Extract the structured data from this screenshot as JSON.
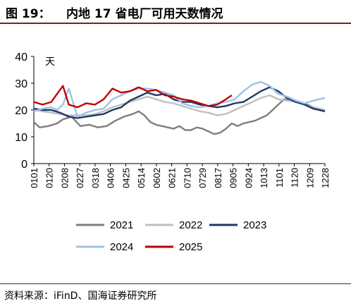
{
  "header": {
    "figure_label": "图 19：",
    "title": "内地 17 省电厂可用天数情况"
  },
  "source": "资料来源：iFinD、国海证券研究所",
  "chart_data": {
    "type": "line",
    "title": "内地 17 省电厂可用天数情况",
    "ylabel": "天",
    "ylim": [
      0,
      40
    ],
    "yticks": [
      0,
      10,
      20,
      30,
      40
    ],
    "x_tick_labels": [
      "0101",
      "0120",
      "0208",
      "0227",
      "0318",
      "0406",
      "0425",
      "0514",
      "0602",
      "0621",
      "0710",
      "0729",
      "0817",
      "0905",
      "0924",
      "1013",
      "1101",
      "1120",
      "1209",
      "1228"
    ],
    "x_positions": [
      0,
      0.0526,
      0.1053,
      0.1579,
      0.2105,
      0.2632,
      0.3158,
      0.3684,
      0.4211,
      0.4737,
      0.5263,
      0.5789,
      0.6316,
      0.6842,
      0.7368,
      0.7895,
      0.8421,
      0.8947,
      0.9474,
      1.0
    ],
    "grid": false,
    "legend_position": "bottom",
    "series": [
      {
        "name": "2021",
        "color": "#7f7f7f",
        "x": [
          0,
          0.02,
          0.05,
          0.08,
          0.1,
          0.13,
          0.16,
          0.19,
          0.22,
          0.25,
          0.28,
          0.31,
          0.34,
          0.36,
          0.38,
          0.4,
          0.42,
          0.44,
          0.46,
          0.48,
          0.5,
          0.52,
          0.54,
          0.56,
          0.58,
          0.6,
          0.62,
          0.64,
          0.66,
          0.68,
          0.7,
          0.72,
          0.74,
          0.76,
          0.78,
          0.8,
          0.82,
          0.84,
          0.86,
          0.88,
          0.9,
          0.92,
          0.94,
          0.96,
          0.98,
          1.0
        ],
        "values": [
          15.5,
          13.5,
          14,
          15,
          16.5,
          17.5,
          14,
          14.5,
          13.5,
          14,
          16,
          17.5,
          18.5,
          19.5,
          18,
          15.5,
          14.5,
          14,
          13.5,
          13,
          14,
          12.5,
          12.5,
          13.5,
          13,
          12,
          11,
          11.5,
          13,
          15,
          14,
          15,
          15.5,
          16,
          17,
          18,
          20,
          22,
          24,
          24,
          23,
          22.5,
          22,
          21,
          20.5,
          20
        ]
      },
      {
        "name": "2022",
        "color": "#bfbfbf",
        "x": [
          0,
          0.03,
          0.06,
          0.09,
          0.12,
          0.15,
          0.18,
          0.21,
          0.24,
          0.27,
          0.3,
          0.33,
          0.36,
          0.39,
          0.42,
          0.45,
          0.48,
          0.51,
          0.54,
          0.57,
          0.6,
          0.63,
          0.66,
          0.69,
          0.72,
          0.75,
          0.78,
          0.81,
          0.84,
          0.87,
          0.9,
          0.93,
          0.96,
          1.0
        ],
        "values": [
          20,
          19.5,
          19,
          18.5,
          18,
          18,
          18,
          18.5,
          19.5,
          21,
          22,
          23,
          24,
          25,
          24,
          23,
          22.5,
          21.5,
          20.5,
          19.5,
          19,
          18,
          18.5,
          20,
          21.5,
          23,
          24.5,
          25.5,
          24,
          23.5,
          23,
          22,
          21,
          20
        ]
      },
      {
        "name": "2023",
        "color": "#1f3864",
        "x": [
          0,
          0.03,
          0.06,
          0.09,
          0.12,
          0.15,
          0.18,
          0.21,
          0.24,
          0.27,
          0.3,
          0.33,
          0.36,
          0.39,
          0.42,
          0.45,
          0.48,
          0.51,
          0.54,
          0.57,
          0.6,
          0.63,
          0.66,
          0.69,
          0.72,
          0.75,
          0.78,
          0.81,
          0.84,
          0.87,
          0.9,
          0.93,
          0.96,
          1.0
        ],
        "values": [
          20.5,
          20,
          20,
          19,
          17.5,
          17,
          17.5,
          18,
          18.5,
          20,
          21,
          23.5,
          25,
          26.5,
          25.5,
          26,
          24,
          23,
          23,
          22,
          21.5,
          21,
          21.5,
          22.5,
          23,
          25,
          27,
          28.5,
          27,
          24.5,
          23,
          22,
          20.5,
          19.5
        ]
      },
      {
        "name": "2024",
        "color": "#9dc3e6",
        "x": [
          0,
          0.03,
          0.06,
          0.08,
          0.1,
          0.12,
          0.15,
          0.18,
          0.21,
          0.24,
          0.27,
          0.3,
          0.33,
          0.36,
          0.39,
          0.42,
          0.45,
          0.48,
          0.51,
          0.54,
          0.57,
          0.6,
          0.63,
          0.66,
          0.69,
          0.72,
          0.75,
          0.78,
          0.81,
          0.84,
          0.87,
          0.9,
          0.93,
          0.96,
          1.0
        ],
        "values": [
          19.5,
          20.5,
          21,
          20,
          22,
          28,
          17.5,
          19,
          20,
          20.5,
          24,
          25.5,
          27,
          28,
          28,
          27.5,
          26.5,
          25.5,
          22.5,
          21.5,
          21,
          21.5,
          22.5,
          23,
          24,
          27,
          29.5,
          30.5,
          29,
          26,
          25,
          23.5,
          22.5,
          23.5,
          24.5
        ]
      },
      {
        "name": "2025",
        "color": "#c00000",
        "x": [
          0,
          0.03,
          0.06,
          0.08,
          0.1,
          0.12,
          0.15,
          0.18,
          0.21,
          0.24,
          0.27,
          0.3,
          0.33,
          0.36,
          0.39,
          0.42,
          0.45,
          0.48,
          0.51,
          0.54,
          0.57,
          0.6,
          0.63,
          0.66,
          0.68
        ],
        "values": [
          23,
          22,
          23,
          26,
          29,
          22,
          21,
          22.5,
          22,
          24,
          28,
          26.5,
          27,
          28.5,
          27,
          27.5,
          25.5,
          25,
          24,
          23.5,
          22.5,
          21.5,
          22,
          24,
          25.5
        ]
      }
    ]
  }
}
